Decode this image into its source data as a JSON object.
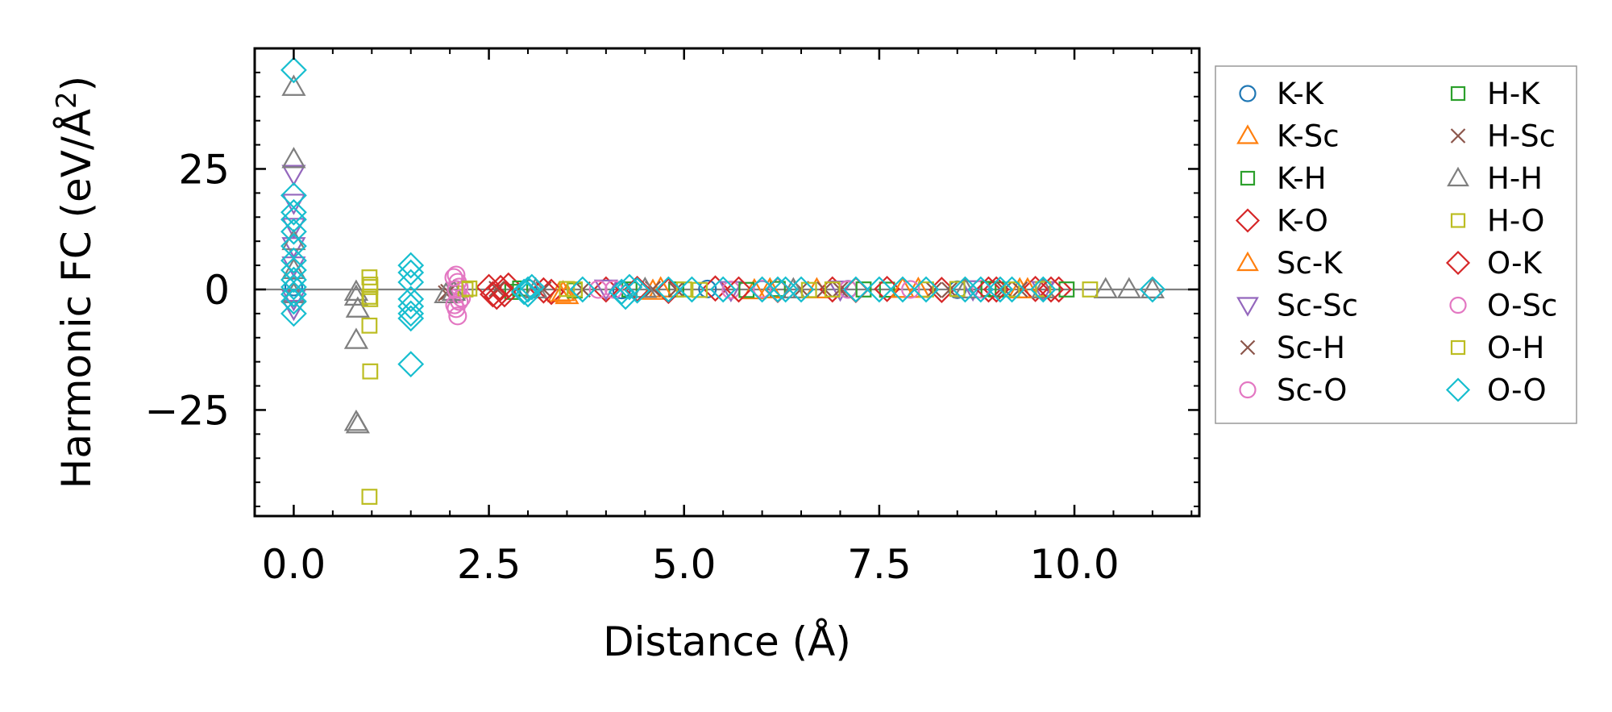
{
  "chart_data": {
    "type": "scatter",
    "title": "",
    "xlabel": "Distance (Å)",
    "ylabel": "Harmonic FC (eV/Å²)",
    "ylabel_main": "Harmonic FC (eV/Å",
    "ylabel_sup": "2",
    "ylabel_close": ")",
    "xlim": [
      -0.5,
      11.6
    ],
    "ylim": [
      -47,
      50
    ],
    "xticks": [
      0.0,
      2.5,
      5.0,
      7.5,
      10.0
    ],
    "xtick_labels": [
      "0.0",
      "2.5",
      "5.0",
      "7.5",
      "10.0"
    ],
    "yticks": [
      -25,
      0,
      25
    ],
    "ytick_labels": [
      "−25",
      "0",
      "25"
    ],
    "grid": false,
    "zero_line": true,
    "legend_position": "outside-right",
    "legend_columns": 2,
    "series": [
      {
        "name": "K-K",
        "marker": "circle",
        "color": "#1f77b4",
        "points": [
          [
            0,
            0.5
          ],
          [
            3.0,
            0.2
          ],
          [
            4.2,
            -0.1
          ],
          [
            5.3,
            0.1
          ],
          [
            6.0,
            0
          ],
          [
            7.1,
            0.05
          ],
          [
            8.5,
            -0.05
          ]
        ]
      },
      {
        "name": "K-Sc",
        "marker": "triangle-up",
        "color": "#ff7f0e",
        "points": [
          [
            3.4,
            -0.8
          ],
          [
            3.5,
            -1.2
          ],
          [
            4.6,
            -0.3
          ],
          [
            5.9,
            -0.2
          ],
          [
            6.7,
            0
          ],
          [
            8.0,
            0.1
          ],
          [
            9.3,
            0
          ]
        ]
      },
      {
        "name": "K-H",
        "marker": "square",
        "color": "#2ca02c",
        "points": [
          [
            2.8,
            -0.5
          ],
          [
            3.6,
            -0.2
          ],
          [
            4.9,
            0
          ],
          [
            6.2,
            0.1
          ],
          [
            7.6,
            -0.05
          ],
          [
            9.0,
            0
          ]
        ]
      },
      {
        "name": "K-O",
        "marker": "diamond",
        "color": "#d62728",
        "points": [
          [
            2.5,
            0.5
          ],
          [
            2.6,
            -1.5
          ],
          [
            2.7,
            -1.0
          ],
          [
            2.75,
            0.8
          ],
          [
            3.3,
            -0.5
          ],
          [
            4.0,
            0
          ],
          [
            4.8,
            -0.3
          ],
          [
            5.4,
            0.2
          ],
          [
            6.2,
            -0.1
          ],
          [
            6.9,
            0
          ],
          [
            7.6,
            0.1
          ],
          [
            8.3,
            -0.1
          ],
          [
            9.0,
            0
          ],
          [
            9.5,
            0.1
          ],
          [
            9.8,
            0
          ]
        ]
      },
      {
        "name": "Sc-K",
        "marker": "triangle-up",
        "color": "#ff7f0e",
        "points": [
          [
            3.45,
            -0.6
          ],
          [
            4.7,
            0.2
          ],
          [
            6.1,
            0
          ],
          [
            7.8,
            0.1
          ],
          [
            9.4,
            0
          ]
        ]
      },
      {
        "name": "Sc-Sc",
        "marker": "triangle-down",
        "color": "#9467bd",
        "points": [
          [
            0,
            24
          ],
          [
            0,
            18
          ],
          [
            0,
            13
          ],
          [
            0,
            9
          ],
          [
            0,
            5
          ],
          [
            0,
            -2
          ],
          [
            0,
            -4
          ],
          [
            4.0,
            0.2
          ],
          [
            5.6,
            -0.1
          ],
          [
            7.0,
            0
          ],
          [
            8.7,
            0.05
          ],
          [
            9.6,
            -0.1
          ]
        ]
      },
      {
        "name": "Sc-H",
        "marker": "x",
        "color": "#8c564b",
        "points": [
          [
            1.95,
            -0.8
          ],
          [
            2.6,
            0.1
          ],
          [
            3.7,
            0
          ],
          [
            4.9,
            0
          ],
          [
            6.5,
            0.1
          ],
          [
            7.0,
            0
          ],
          [
            8.4,
            -0.1
          ],
          [
            9.3,
            0
          ]
        ]
      },
      {
        "name": "Sc-O",
        "marker": "circle",
        "color": "#e377c2",
        "points": [
          [
            2.08,
            3.0
          ],
          [
            2.1,
            1.5
          ],
          [
            2.12,
            0.5
          ],
          [
            2.1,
            -1.0
          ],
          [
            2.12,
            -2.5
          ],
          [
            2.08,
            -4.0
          ],
          [
            2.1,
            -5.5
          ],
          [
            3.9,
            0
          ],
          [
            5.6,
            -0.1
          ],
          [
            7.1,
            0
          ],
          [
            8.8,
            0.05
          ]
        ]
      },
      {
        "name": "H-K",
        "marker": "square",
        "color": "#2ca02c",
        "points": [
          [
            2.9,
            0.2
          ],
          [
            4.3,
            0
          ],
          [
            5.8,
            -0.1
          ],
          [
            7.3,
            0
          ],
          [
            8.9,
            0.1
          ],
          [
            9.9,
            0
          ]
        ]
      },
      {
        "name": "H-Sc",
        "marker": "x",
        "color": "#8c564b",
        "points": [
          [
            1.98,
            -0.5
          ],
          [
            3.2,
            0
          ],
          [
            4.6,
            0.1
          ],
          [
            6.8,
            0
          ],
          [
            8.2,
            -0.1
          ],
          [
            9.1,
            0
          ]
        ]
      },
      {
        "name": "H-H",
        "marker": "triangle-up",
        "color": "#7f7f7f",
        "points": [
          [
            0,
            42
          ],
          [
            0,
            27
          ],
          [
            0,
            10
          ],
          [
            0,
            4
          ],
          [
            0,
            -1
          ],
          [
            0.8,
            -0.5
          ],
          [
            0.8,
            -1.5
          ],
          [
            0.82,
            -4.0
          ],
          [
            0.8,
            -10.5
          ],
          [
            0.8,
            -27.5
          ],
          [
            0.82,
            -28
          ],
          [
            1.95,
            -1.0
          ],
          [
            2.05,
            -0.5
          ],
          [
            3.1,
            0
          ],
          [
            4.5,
            0.1
          ],
          [
            6.4,
            0
          ],
          [
            8.6,
            0
          ],
          [
            9.6,
            0
          ],
          [
            10.4,
            0
          ],
          [
            10.7,
            0
          ],
          [
            11.0,
            0
          ]
        ]
      },
      {
        "name": "H-O",
        "marker": "square",
        "color": "#bcbd22",
        "points": [
          [
            0.97,
            2.5
          ],
          [
            0.98,
            0.5
          ],
          [
            0.98,
            -2.0
          ],
          [
            0.97,
            -7.5
          ],
          [
            0.98,
            -17.0
          ],
          [
            0.97,
            -43.0
          ],
          [
            2.2,
            0
          ],
          [
            3.5,
            0.1
          ],
          [
            5.0,
            0
          ],
          [
            6.6,
            -0.1
          ],
          [
            8.1,
            0
          ],
          [
            9.6,
            0.1
          ],
          [
            10.2,
            0
          ]
        ]
      },
      {
        "name": "O-K",
        "marker": "diamond",
        "color": "#d62728",
        "points": [
          [
            2.55,
            -1.0
          ],
          [
            2.65,
            0.3
          ],
          [
            3.2,
            -0.2
          ],
          [
            4.4,
            0.1
          ],
          [
            5.7,
            0
          ],
          [
            7.2,
            -0.1
          ],
          [
            8.9,
            0
          ],
          [
            9.7,
            0
          ]
        ]
      },
      {
        "name": "O-Sc",
        "marker": "circle",
        "color": "#e377c2",
        "points": [
          [
            2.05,
            2.5
          ],
          [
            2.08,
            0
          ],
          [
            2.15,
            -1.8
          ],
          [
            2.06,
            -3.2
          ],
          [
            4.1,
            0
          ],
          [
            6.0,
            0.1
          ],
          [
            7.9,
            0
          ]
        ]
      },
      {
        "name": "O-H",
        "marker": "square",
        "color": "#bcbd22",
        "points": [
          [
            0.98,
            1.0
          ],
          [
            0.97,
            -1.5
          ],
          [
            2.25,
            0.2
          ],
          [
            3.6,
            0
          ],
          [
            5.2,
            -0.1
          ],
          [
            6.9,
            0
          ],
          [
            8.5,
            0.1
          ],
          [
            9.2,
            0
          ]
        ]
      },
      {
        "name": "O-O",
        "marker": "diamond",
        "color": "#17becf",
        "points": [
          [
            0,
            45.5
          ],
          [
            0,
            19.5
          ],
          [
            0,
            16.0
          ],
          [
            0,
            14.5
          ],
          [
            0,
            12.0
          ],
          [
            0,
            9.0
          ],
          [
            0,
            6.0
          ],
          [
            0,
            4.0
          ],
          [
            0,
            2.0
          ],
          [
            0,
            0.5
          ],
          [
            0,
            -1.0
          ],
          [
            0,
            -2.5
          ],
          [
            0,
            -5.0
          ],
          [
            1.5,
            5.0
          ],
          [
            1.5,
            3.5
          ],
          [
            1.5,
            1.5
          ],
          [
            1.5,
            -2.0
          ],
          [
            1.5,
            -3.5
          ],
          [
            1.5,
            -5.0
          ],
          [
            1.5,
            -6.0
          ],
          [
            1.5,
            -15.5
          ],
          [
            2.95,
            -0.5
          ],
          [
            3.0,
            0
          ],
          [
            3.0,
            -1.0
          ],
          [
            3.05,
            0.5
          ],
          [
            3.7,
            0
          ],
          [
            4.2,
            -0.5
          ],
          [
            4.25,
            -1.5
          ],
          [
            4.3,
            0.5
          ],
          [
            4.4,
            -0.2
          ],
          [
            4.8,
            0
          ],
          [
            5.1,
            0
          ],
          [
            5.5,
            0
          ],
          [
            6.0,
            0
          ],
          [
            6.2,
            0
          ],
          [
            6.3,
            0
          ],
          [
            6.5,
            0
          ],
          [
            7.2,
            0
          ],
          [
            7.5,
            0
          ],
          [
            7.8,
            0
          ],
          [
            8.1,
            0
          ],
          [
            8.6,
            0
          ],
          [
            8.8,
            0
          ],
          [
            9.05,
            0
          ],
          [
            9.2,
            0
          ],
          [
            9.6,
            0
          ],
          [
            11.0,
            0
          ]
        ]
      }
    ]
  }
}
